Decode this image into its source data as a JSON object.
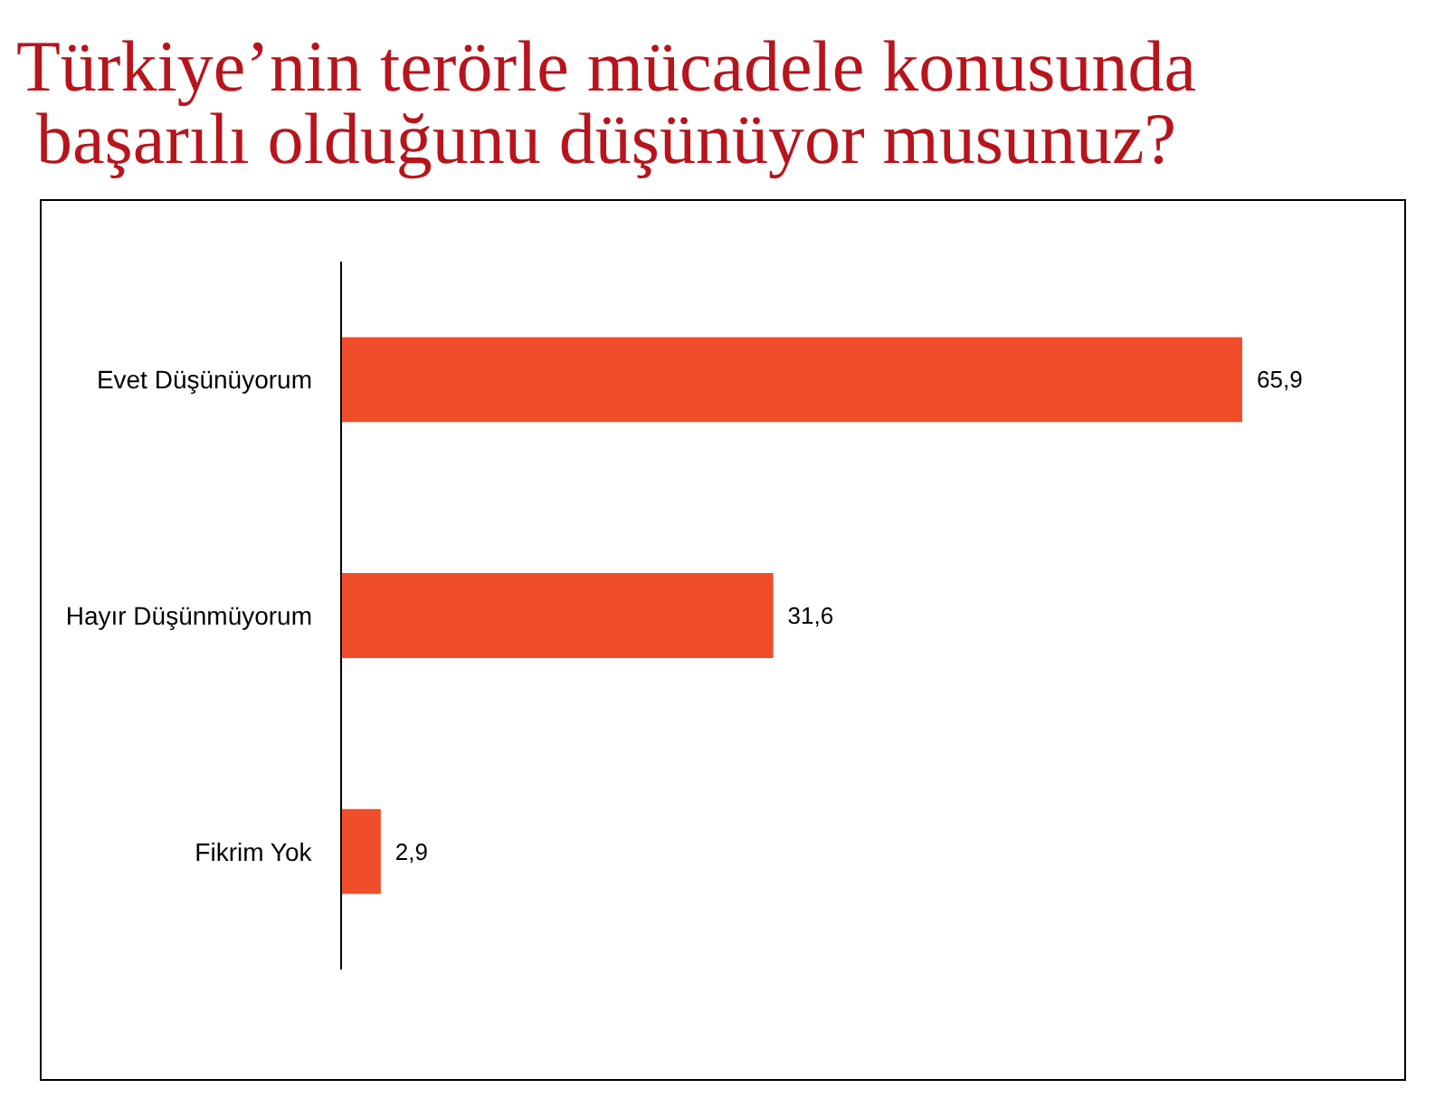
{
  "chart_data": {
    "type": "bar",
    "orientation": "horizontal",
    "title": "Türkiye’nin terörle mücadele konusunda başarılı olduğunu düşünüyor musunuz?",
    "categories": [
      "Evet Düşünüyorum",
      "Hayır Düşünmüyorum",
      "Fikrim Yok"
    ],
    "values": [
      65.9,
      31.6,
      2.9
    ],
    "value_labels": [
      "65,9",
      "31,6",
      "2,9"
    ],
    "color": "#f04e2a",
    "tick_labels": "y",
    "grid": false
  }
}
